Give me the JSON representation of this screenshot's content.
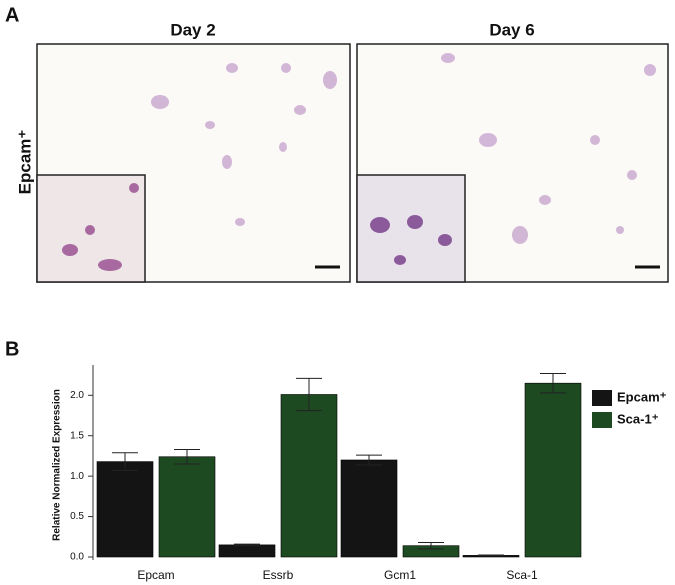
{
  "panel_a": {
    "label": "A",
    "columns": [
      "Day 2",
      "Day 6"
    ],
    "row_label": "Epcam⁺"
  },
  "panel_b": {
    "label": "B"
  },
  "chart_data": {
    "type": "bar",
    "y_label": "Relative Normalized Expression",
    "categories": [
      "Epcam",
      "Essrb",
      "Gcm1",
      "Sca-1"
    ],
    "series": [
      {
        "name": "Epcam⁺",
        "color": "#141414",
        "values": [
          1.18,
          0.15,
          1.2,
          0.02
        ],
        "errors": [
          0.11,
          0.01,
          0.06,
          0.005
        ]
      },
      {
        "name": "Sca-1⁺",
        "color": "#1e4a22",
        "values": [
          1.24,
          2.01,
          0.14,
          2.15
        ],
        "errors": [
          0.09,
          0.2,
          0.04,
          0.12
        ]
      }
    ],
    "ylim": [
      0,
      2.35
    ],
    "yticks": [
      {
        "value": 0,
        "label": "0.0"
      },
      {
        "value": 0.5,
        "label": "0.5"
      },
      {
        "value": 1,
        "label": "1.0"
      },
      {
        "value": 1.5,
        "label": "1.5"
      },
      {
        "value": 2,
        "label": "2.0"
      }
    ],
    "legend": "right"
  }
}
